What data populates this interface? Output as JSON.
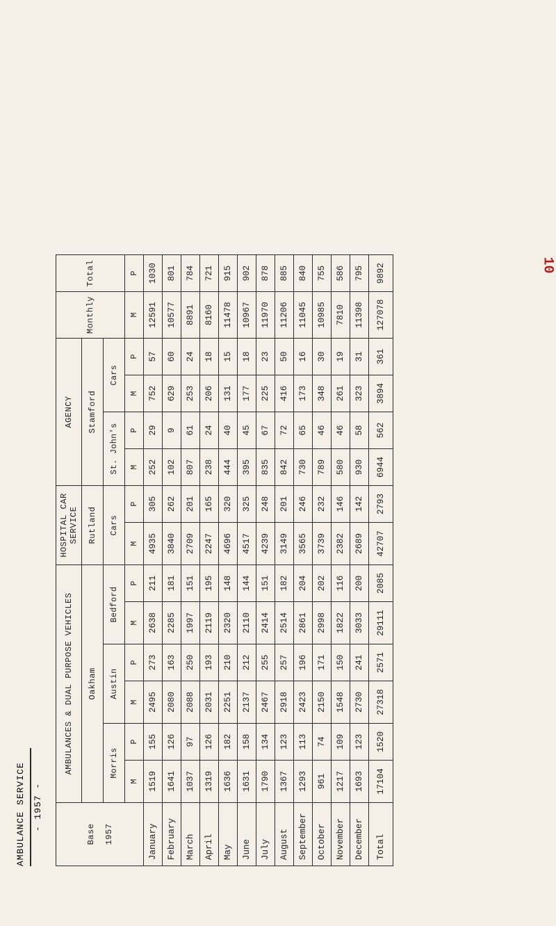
{
  "title": {
    "line1": "AMBULANCE SERVICE",
    "line2": "- 1957 -"
  },
  "page_number": "10",
  "header": {
    "base": "Base",
    "year": "1957",
    "amb_dual": "AMBULANCES & DUAL PURPOSE VEHICLES",
    "oakham": "Oakham",
    "morris": "Morris",
    "austin": "Austin",
    "bedford": "Bedford",
    "hospital": "HOSPITAL CAR SERVICE",
    "rutland": "Rutland",
    "cars": "Cars",
    "agency": "AGENCY",
    "stamford": "Stamford",
    "stjohns": "St. John's",
    "cars2": "Cars",
    "monthly": "Monthly",
    "total": "Total",
    "M": "M",
    "P": "P"
  },
  "months": [
    "January",
    "February",
    "March",
    "April",
    "May",
    "June",
    "July",
    "August",
    "September",
    "October",
    "November",
    "December"
  ],
  "rows": [
    {
      "morris_m": "1519",
      "morris_p": "155",
      "austin_m": "2495",
      "austin_p": "273",
      "bedford_m": "2638",
      "bedford_p": "211",
      "cars_m": "4935",
      "cars_p": "305",
      "stj_m": "252",
      "stj_p": "29",
      "cars2_m": "752",
      "cars2_p": "57",
      "monthly_m": "12591",
      "total_p": "1030"
    },
    {
      "morris_m": "1641",
      "morris_p": "126",
      "austin_m": "2080",
      "austin_p": "163",
      "bedford_m": "2285",
      "bedford_p": "181",
      "cars_m": "3840",
      "cars_p": "262",
      "stj_m": "102",
      "stj_p": "9",
      "cars2_m": "629",
      "cars2_p": "60",
      "monthly_m": "10577",
      "total_p": "801"
    },
    {
      "morris_m": "1037",
      "morris_p": "97",
      "austin_m": "2088",
      "austin_p": "250",
      "bedford_m": "1997",
      "bedford_p": "151",
      "cars_m": "2709",
      "cars_p": "201",
      "stj_m": "807",
      "stj_p": "61",
      "cars2_m": "253",
      "cars2_p": "24",
      "monthly_m": "8891",
      "total_p": "784"
    },
    {
      "morris_m": "1319",
      "morris_p": "126",
      "austin_m": "2031",
      "austin_p": "193",
      "bedford_m": "2119",
      "bedford_p": "195",
      "cars_m": "2247",
      "cars_p": "165",
      "stj_m": "238",
      "stj_p": "24",
      "cars2_m": "206",
      "cars2_p": "18",
      "monthly_m": "8160",
      "total_p": "721"
    },
    {
      "morris_m": "1636",
      "morris_p": "182",
      "austin_m": "2251",
      "austin_p": "210",
      "bedford_m": "2320",
      "bedford_p": "148",
      "cars_m": "4696",
      "cars_p": "320",
      "stj_m": "444",
      "stj_p": "40",
      "cars2_m": "131",
      "cars2_p": "15",
      "monthly_m": "11478",
      "total_p": "915"
    },
    {
      "morris_m": "1631",
      "morris_p": "158",
      "austin_m": "2137",
      "austin_p": "212",
      "bedford_m": "2110",
      "bedford_p": "144",
      "cars_m": "4517",
      "cars_p": "325",
      "stj_m": "395",
      "stj_p": "45",
      "cars2_m": "177",
      "cars2_p": "18",
      "monthly_m": "10967",
      "total_p": "902"
    },
    {
      "morris_m": "1790",
      "morris_p": "134",
      "austin_m": "2467",
      "austin_p": "255",
      "bedford_m": "2414",
      "bedford_p": "151",
      "cars_m": "4239",
      "cars_p": "248",
      "stj_m": "835",
      "stj_p": "67",
      "cars2_m": "225",
      "cars2_p": "23",
      "monthly_m": "11970",
      "total_p": "878"
    },
    {
      "morris_m": "1367",
      "morris_p": "123",
      "austin_m": "2918",
      "austin_p": "257",
      "bedford_m": "2514",
      "bedford_p": "182",
      "cars_m": "3149",
      "cars_p": "201",
      "stj_m": "842",
      "stj_p": "72",
      "cars2_m": "416",
      "cars2_p": "50",
      "monthly_m": "11206",
      "total_p": "885"
    },
    {
      "morris_m": "1293",
      "morris_p": "113",
      "austin_m": "2423",
      "austin_p": "196",
      "bedford_m": "2861",
      "bedford_p": "204",
      "cars_m": "3565",
      "cars_p": "246",
      "stj_m": "730",
      "stj_p": "65",
      "cars2_m": "173",
      "cars2_p": "16",
      "monthly_m": "11045",
      "total_p": "840"
    },
    {
      "morris_m": "961",
      "morris_p": "74",
      "austin_m": "2150",
      "austin_p": "171",
      "bedford_m": "2998",
      "bedford_p": "202",
      "cars_m": "3739",
      "cars_p": "232",
      "stj_m": "789",
      "stj_p": "46",
      "cars2_m": "348",
      "cars2_p": "30",
      "monthly_m": "10985",
      "total_p": "755"
    },
    {
      "morris_m": "1217",
      "morris_p": "109",
      "austin_m": "1548",
      "austin_p": "150",
      "bedford_m": "1822",
      "bedford_p": "116",
      "cars_m": "2382",
      "cars_p": "146",
      "stj_m": "580",
      "stj_p": "46",
      "cars2_m": "261",
      "cars2_p": "19",
      "monthly_m": "7810",
      "total_p": "586"
    },
    {
      "morris_m": "1693",
      "morris_p": "123",
      "austin_m": "2730",
      "austin_p": "241",
      "bedford_m": "3033",
      "bedford_p": "200",
      "cars_m": "2689",
      "cars_p": "142",
      "stj_m": "930",
      "stj_p": "58",
      "cars2_m": "323",
      "cars2_p": "31",
      "monthly_m": "11398",
      "total_p": "795"
    }
  ],
  "totals": {
    "label": "Total",
    "morris_m": "17104",
    "morris_p": "1520",
    "austin_m": "27318",
    "austin_p": "2571",
    "bedford_m": "29111",
    "bedford_p": "2085",
    "cars_m": "42707",
    "cars_p": "2793",
    "stj_m": "6944",
    "stj_p": "562",
    "cars2_m": "3894",
    "cars2_p": "361",
    "monthly_m": "127078",
    "total_p": "9892"
  }
}
